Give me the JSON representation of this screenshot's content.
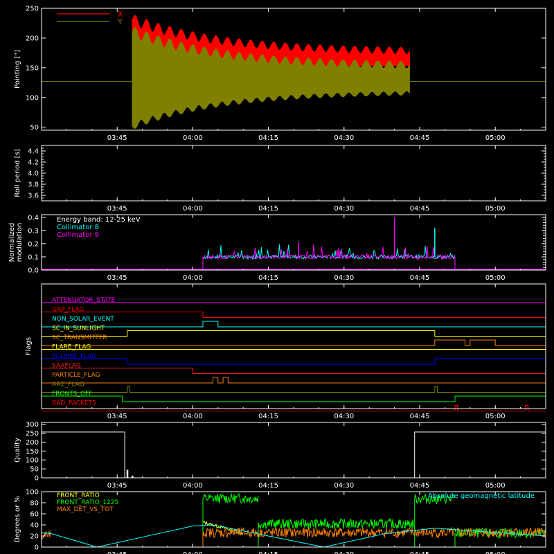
{
  "time_ticks": [
    "03:45",
    "04:00",
    "04:15",
    "04:30",
    "04:45",
    "05:00"
  ],
  "chart_data": [
    {
      "id": "pointing",
      "type": "line",
      "ylabel": "Pointing [\"]",
      "yticks": [
        50,
        100,
        150,
        200,
        250
      ],
      "ylim": [
        45,
        250
      ],
      "legend": [
        {
          "name": "X",
          "color": "#ff0000"
        },
        {
          "name": "Y",
          "color": "#808000"
        }
      ],
      "reference_line": 127,
      "series": [
        {
          "name": "X",
          "color": "#ff0000",
          "start": "03:48",
          "end": "04:43",
          "envelope": {
            "upper_start": 230,
            "upper_end": 176,
            "lower_start": 120,
            "lower_end": 152
          }
        },
        {
          "name": "Y",
          "color": "#808000",
          "start": "03:48",
          "end": "04:43",
          "envelope": {
            "upper_start": 210,
            "upper_end": 152,
            "lower_start": 52,
            "lower_end": 110
          }
        }
      ]
    },
    {
      "id": "roll",
      "type": "line",
      "ylabel": "Roll period [s]",
      "yticks": [
        "3.6",
        "3.8",
        "4.0",
        "4.2",
        "4.4"
      ],
      "ylim": [
        3.5,
        4.5
      ],
      "series": []
    },
    {
      "id": "modulation",
      "type": "line",
      "ylabel": [
        "Normalized",
        "modulation"
      ],
      "yticks": [
        "0.0",
        "0.1",
        "0.2",
        "0.3",
        "0.4"
      ],
      "ylim": [
        0,
        0.42
      ],
      "legend": [
        {
          "name": "Energy band: 12-25 keV",
          "color": "#ffffff"
        },
        {
          "name": "Collimator 8",
          "color": "#00ffff"
        },
        {
          "name": "Collimator 9",
          "color": "#ff00ff"
        }
      ],
      "series": [
        {
          "name": "Collimator 8",
          "color": "#00ffff",
          "start": "04:02",
          "end": "04:52",
          "baseline": 0.1
        },
        {
          "name": "Collimator 9",
          "color": "#ff00ff",
          "start": "04:02",
          "end": "04:52",
          "baseline": 0.1
        }
      ],
      "peaks": [
        {
          "t": "04:40",
          "v": 0.4,
          "color": "#ff00ff"
        },
        {
          "t": "04:21",
          "v": 0.21,
          "color": "#ff00ff"
        },
        {
          "t": "04:48",
          "v": 0.32,
          "color": "#00ffff"
        }
      ]
    },
    {
      "id": "flags",
      "type": "step",
      "ylabel": "Flags",
      "flags": [
        {
          "name": "ATTENUATOR_STATE",
          "color": "#ff00ff",
          "steps": []
        },
        {
          "name": "GAP_FLAG",
          "color": "#ff0000",
          "steps": [
            [
              "03:30",
              1
            ],
            [
              "04:02",
              0
            ]
          ]
        },
        {
          "name": "NON_SOLAR_EVENT",
          "color": "#00ffff",
          "steps": [
            [
              "03:30",
              0
            ],
            [
              "04:02",
              1
            ],
            [
              "04:05",
              0
            ]
          ]
        },
        {
          "name": "SC_IN_SUNLIGHT",
          "color": "#ffff00",
          "steps": [
            [
              "03:30",
              0
            ],
            [
              "03:47",
              1
            ],
            [
              "04:48",
              0
            ]
          ]
        },
        {
          "name": "SC_TRANSMITTER",
          "color": "#ff8000",
          "steps": [
            [
              "03:30",
              0
            ],
            [
              "04:48",
              1
            ],
            [
              "04:54",
              0
            ],
            [
              "04:55",
              1
            ],
            [
              "05:00",
              0
            ]
          ]
        },
        {
          "name": "FLARE_FLAG",
          "color": "#ffff00",
          "steps": []
        },
        {
          "name": "ECLIPSE_FLAG",
          "color": "#0000ff",
          "steps": [
            [
              "03:30",
              1
            ],
            [
              "03:47",
              0
            ],
            [
              "04:48",
              1
            ]
          ]
        },
        {
          "name": "SAAFLAG",
          "color": "#ff2020",
          "steps": [
            [
              "03:30",
              1
            ],
            [
              "04:00",
              0
            ]
          ]
        },
        {
          "name": "PARTICLE_FLAG",
          "color": "#ff8000",
          "steps": [
            [
              "03:30",
              0
            ],
            [
              "04:04",
              1
            ],
            [
              "04:05",
              0
            ],
            [
              "04:06",
              1
            ],
            [
              "04:07",
              0
            ]
          ]
        },
        {
          "name": "AAZ_FLAG",
          "color": "#808000",
          "steps": [
            [
              "03:30",
              0
            ],
            [
              "03:47",
              1
            ],
            [
              "03:47.5",
              0
            ],
            [
              "04:48",
              1
            ],
            [
              "04:48.5",
              0
            ]
          ]
        },
        {
          "name": "FRONTS_OFF",
          "color": "#00ff00",
          "steps": [
            [
              "03:30",
              1
            ],
            [
              "03:46",
              0
            ],
            [
              "04:52",
              1
            ]
          ]
        },
        {
          "name": "BAD_PACKETS",
          "color": "#ff0000",
          "steps": [
            [
              "03:30",
              0
            ],
            [
              "04:52",
              1
            ],
            [
              "04:52.5",
              0
            ],
            [
              "05:06",
              1
            ],
            [
              "05:06.5",
              0
            ]
          ]
        }
      ]
    },
    {
      "id": "quality",
      "type": "step",
      "ylabel": "Quality",
      "yticks": [
        0,
        50,
        100,
        150,
        200,
        250,
        300
      ],
      "ylim": [
        0,
        310
      ],
      "series": [
        {
          "name": "Quality",
          "color": "#ffffff",
          "steps": [
            [
              "03:30",
              256
            ],
            [
              "03:46.5",
              0
            ],
            [
              "04:44",
              256
            ],
            [
              "05:10",
              256
            ]
          ],
          "spikes": [
            {
              "t": "03:47",
              "v": 45
            },
            {
              "t": "03:48",
              "v": 12
            }
          ]
        }
      ]
    },
    {
      "id": "ratios",
      "type": "line",
      "ylabel": "Degrees or %",
      "yticks": [
        0,
        20,
        40,
        60,
        80,
        100
      ],
      "ylim": [
        0,
        100
      ],
      "legend": [
        {
          "name": "FRONT_RATIO",
          "color": "#ffff00"
        },
        {
          "name": "FRONT_RATIO_1225",
          "color": "#00ff00"
        },
        {
          "name": "MAX_DET_VS_TOT",
          "color": "#ff8000"
        }
      ],
      "annotation": {
        "text": "Absolute geomagnetic latitude",
        "color": "#00ffff"
      },
      "series": [
        {
          "name": "FRONT_RATIO",
          "color": "#ffff00",
          "start": "04:02",
          "end": "04:10",
          "from": 45,
          "to": 25
        },
        {
          "name": "FRONT_RATIO_1225",
          "color": "#00ff00",
          "segments": [
            {
              "start": "04:02",
              "end": "04:13",
              "level": 88
            },
            {
              "start": "04:13",
              "end": "04:44",
              "level": 42
            },
            {
              "start": "04:44",
              "end": "04:52",
              "level": 87
            },
            {
              "start": "04:52",
              "end": "05:10",
              "level": 25
            }
          ]
        },
        {
          "name": "MAX_DET_VS_TOT",
          "color": "#ff8000",
          "segments": [
            {
              "start": "03:30",
              "end": "03:32",
              "level": 22
            },
            {
              "start": "04:02",
              "end": "05:10",
              "level": 26
            }
          ]
        },
        {
          "name": "Absolute geomagnetic latitude",
          "color": "#00ffff",
          "points": [
            [
              "03:30",
              26
            ],
            [
              "03:32",
              24
            ],
            [
              "03:41",
              0
            ],
            [
              "04:00",
              38
            ],
            [
              "04:04",
              40
            ],
            [
              "04:26",
              0
            ],
            [
              "04:38",
              24
            ],
            [
              "04:48",
              34
            ],
            [
              "05:10",
              20
            ]
          ]
        }
      ]
    }
  ]
}
